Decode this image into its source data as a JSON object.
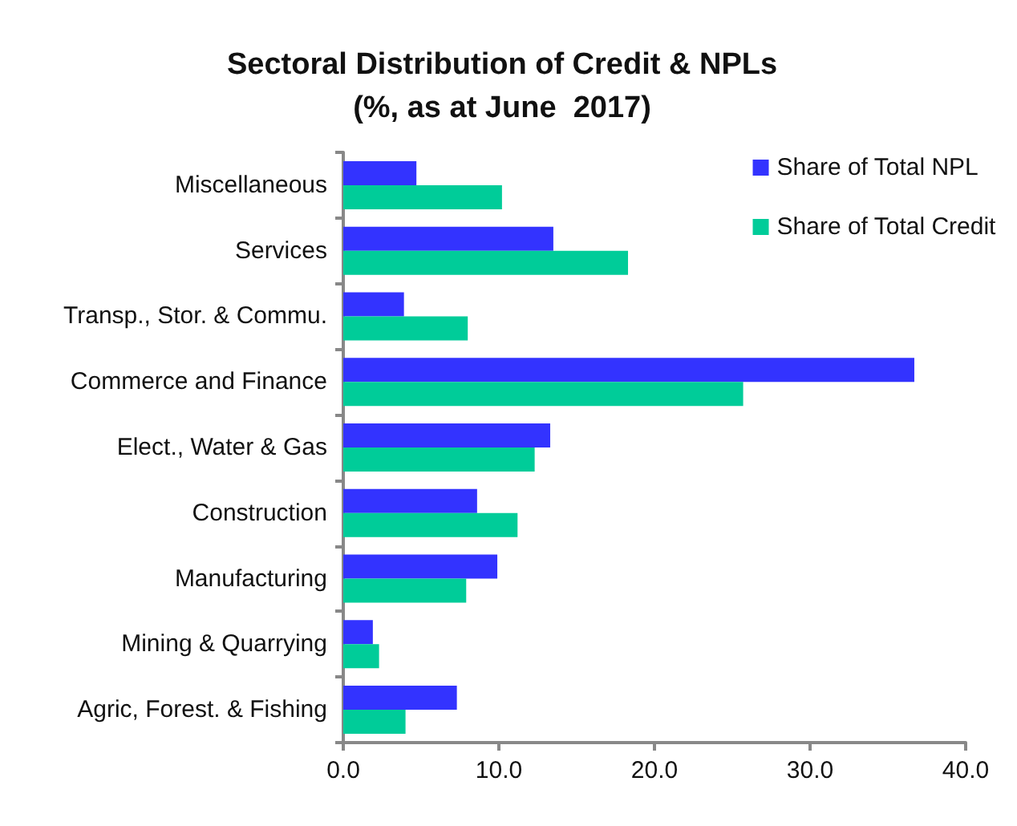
{
  "chart_data": {
    "type": "bar",
    "orientation": "horizontal",
    "title": "Sectoral Distribution of Credit & NPLs",
    "subtitle": "(%, as at June  2017)",
    "categories": [
      "Miscellaneous",
      "Services",
      "Transp., Stor. & Commu.",
      "Commerce and Finance",
      "Elect., Water & Gas",
      "Construction",
      "Manufacturing",
      "Mining & Quarrying",
      "Agric, Forest. & Fishing"
    ],
    "series": [
      {
        "name": "Share of Total NPL",
        "color": "#3333ff",
        "values": [
          4.7,
          13.5,
          3.9,
          36.7,
          13.3,
          8.6,
          9.9,
          1.9,
          7.3
        ]
      },
      {
        "name": "Share of Total Credit",
        "color": "#00cc99",
        "values": [
          10.2,
          18.3,
          8.0,
          25.7,
          12.3,
          11.2,
          7.9,
          2.3,
          4.0
        ]
      }
    ],
    "xlim": [
      0,
      40
    ],
    "xticks": [
      {
        "value": 0,
        "label": "0.0"
      },
      {
        "value": 10,
        "label": "10.0"
      },
      {
        "value": 20,
        "label": "20.0"
      },
      {
        "value": 30,
        "label": "30.0"
      },
      {
        "value": 40,
        "label": "40.0"
      }
    ],
    "grid": false,
    "legend": "top right"
  }
}
